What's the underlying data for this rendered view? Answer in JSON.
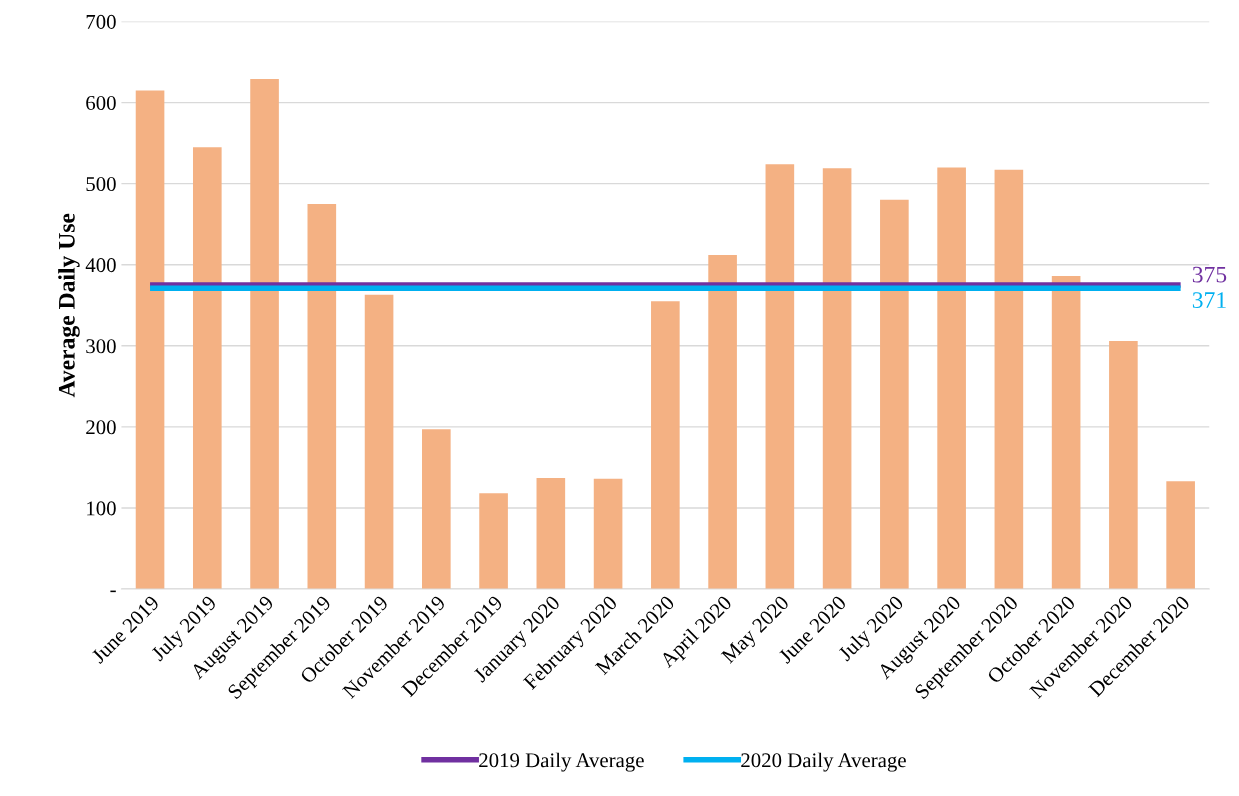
{
  "chart_data": {
    "type": "bar",
    "ylabel": "Average Daily Use",
    "categories": [
      "June 2019",
      "July 2019",
      "August 2019",
      "September 2019",
      "October 2019",
      "November 2019",
      "December 2019",
      "January 2020",
      "February 2020",
      "March 2020",
      "April 2020",
      "May 2020",
      "June 2020",
      "July 2020",
      "August 2020",
      "September 2020",
      "October 2020",
      "November 2020",
      "December 2020"
    ],
    "series": [
      {
        "color": "#f4b183",
        "values": [
          615,
          545,
          629,
          475,
          363,
          197,
          118,
          137,
          136,
          355,
          412,
          524,
          519,
          480,
          520,
          517,
          386,
          306,
          133
        ]
      },
      {
        "type": "line",
        "name": "2019 Daily Average",
        "color": "#7030a0",
        "values": [
          375,
          375,
          375,
          375,
          375,
          375,
          375,
          375,
          375,
          375,
          375,
          375,
          375,
          375,
          375,
          375,
          375,
          375,
          375
        ],
        "value_labels": [
          null,
          null,
          null,
          null,
          null,
          null,
          null,
          null,
          null,
          null,
          null,
          null,
          null,
          null,
          null,
          null,
          null,
          null,
          "375"
        ]
      },
      {
        "type": "line",
        "name": "2020 Daily Average",
        "color": "#00b0f0",
        "values": [
          371,
          371,
          371,
          371,
          371,
          371,
          371,
          371,
          371,
          371,
          371,
          371,
          371,
          371,
          371,
          371,
          371,
          371,
          371
        ],
        "value_labels": [
          null,
          null,
          null,
          null,
          null,
          null,
          null,
          null,
          null,
          null,
          null,
          null,
          null,
          null,
          null,
          null,
          null,
          null,
          "371"
        ]
      }
    ],
    "ylim": [
      0,
      700
    ],
    "yticks": [
      {
        "value": 0,
        "label": "-"
      },
      100,
      200,
      300,
      400,
      500,
      600,
      700
    ],
    "grid": "y",
    "legend": "bottom"
  }
}
